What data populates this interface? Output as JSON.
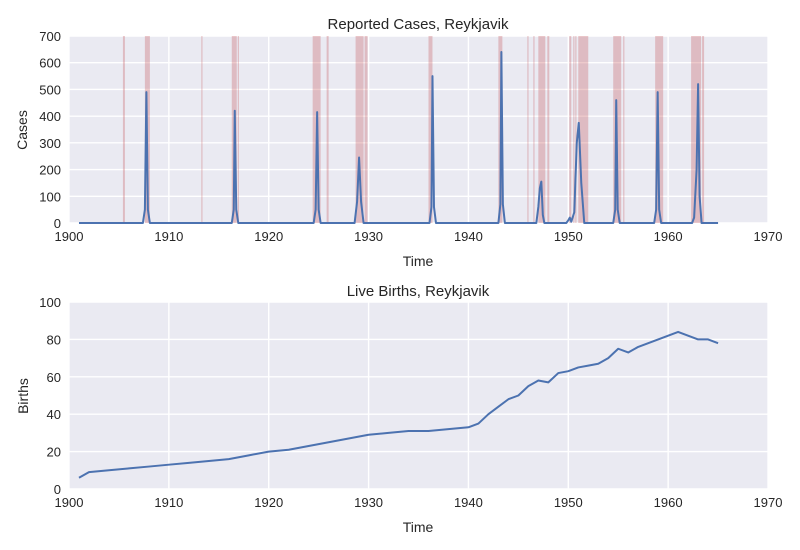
{
  "chart_data": [
    {
      "type": "line",
      "title": "Reported Cases, Reykjavik",
      "xlabel": "Time",
      "ylabel": "Cases",
      "xlim": [
        1900,
        1970
      ],
      "ylim": [
        0,
        700
      ],
      "xticks": [
        1900,
        1910,
        1920,
        1930,
        1940,
        1950,
        1960,
        1970
      ],
      "yticks": [
        0,
        100,
        200,
        300,
        400,
        500,
        600,
        700
      ],
      "grid": true,
      "series": [
        {
          "color": "#4c72b0",
          "x": [
            1901,
            1905.0,
            1907.4,
            1907.6,
            1907.75,
            1907.9,
            1908.1,
            1916.3,
            1916.5,
            1916.6,
            1916.75,
            1916.95,
            1924.5,
            1924.7,
            1924.85,
            1925.0,
            1925.2,
            1928.6,
            1928.85,
            1929.05,
            1929.25,
            1929.5,
            1936.1,
            1936.3,
            1936.4,
            1936.55,
            1936.75,
            1943.0,
            1943.2,
            1943.3,
            1943.45,
            1943.65,
            1946.8,
            1947.0,
            1947.15,
            1947.3,
            1947.45,
            1947.6,
            1949.8,
            1950.0,
            1950.15,
            1950.3,
            1950.6,
            1950.85,
            1951.05,
            1951.3,
            1951.6,
            1954.5,
            1954.7,
            1954.8,
            1954.95,
            1955.15,
            1958.6,
            1958.8,
            1958.95,
            1959.1,
            1959.3,
            1962.4,
            1962.6,
            1962.85,
            1963.0,
            1963.15,
            1963.35,
            1965
          ],
          "y": [
            0,
            0,
            0,
            50,
            490,
            50,
            0,
            0,
            50,
            420,
            50,
            0,
            0,
            50,
            415,
            50,
            0,
            0,
            80,
            245,
            80,
            0,
            0,
            60,
            550,
            60,
            0,
            0,
            70,
            640,
            70,
            0,
            0,
            60,
            130,
            155,
            30,
            0,
            0,
            10,
            20,
            5,
            40,
            300,
            375,
            150,
            0,
            0,
            50,
            460,
            50,
            0,
            0,
            50,
            490,
            50,
            0,
            0,
            20,
            200,
            520,
            100,
            0,
            0
          ]
        }
      ],
      "shaded_x_ranges": [
        [
          1905.4,
          1905.6
        ],
        [
          1907.6,
          1908.1
        ],
        [
          1913.25,
          1913.35
        ],
        [
          1916.3,
          1916.8
        ],
        [
          1916.9,
          1917.0
        ],
        [
          1924.4,
          1925.2
        ],
        [
          1925.8,
          1926.0
        ],
        [
          1928.7,
          1929.5
        ],
        [
          1929.6,
          1929.9
        ],
        [
          1936.0,
          1936.4
        ],
        [
          1943.0,
          1943.4
        ],
        [
          1945.9,
          1946.0
        ],
        [
          1946.5,
          1946.6
        ],
        [
          1947.0,
          1947.7
        ],
        [
          1947.9,
          1948.1
        ],
        [
          1950.1,
          1950.3
        ],
        [
          1950.5,
          1950.6
        ],
        [
          1950.7,
          1950.8
        ],
        [
          1951.0,
          1952.0
        ],
        [
          1954.5,
          1955.3
        ],
        [
          1955.5,
          1955.6
        ],
        [
          1958.7,
          1959.5
        ],
        [
          1962.3,
          1963.3
        ],
        [
          1963.4,
          1963.6
        ]
      ]
    },
    {
      "type": "line",
      "title": "Live Births, Reykjavik",
      "xlabel": "Time",
      "ylabel": "Births",
      "xlim": [
        1900,
        1970
      ],
      "ylim": [
        0,
        100
      ],
      "xticks": [
        1900,
        1910,
        1920,
        1930,
        1940,
        1950,
        1960,
        1970
      ],
      "yticks": [
        0,
        20,
        40,
        60,
        80,
        100
      ],
      "grid": true,
      "series": [
        {
          "color": "#4c72b0",
          "x": [
            1901,
            1902,
            1904,
            1906,
            1908,
            1910,
            1912,
            1914,
            1916,
            1918,
            1920,
            1922,
            1924,
            1926,
            1928,
            1930,
            1932,
            1934,
            1936,
            1938,
            1940,
            1941,
            1942,
            1943,
            1944,
            1945,
            1946,
            1947,
            1948,
            1949,
            1950,
            1951,
            1952,
            1953,
            1954,
            1955,
            1956,
            1957,
            1958,
            1959,
            1960,
            1961,
            1962,
            1963,
            1964,
            1965
          ],
          "y": [
            6,
            9,
            10,
            11,
            12,
            13,
            14,
            15,
            16,
            18,
            20,
            21,
            23,
            25,
            27,
            29,
            30,
            31,
            31,
            32,
            33,
            35,
            40,
            44,
            48,
            50,
            55,
            58,
            57,
            62,
            63,
            65,
            66,
            67,
            70,
            75,
            73,
            76,
            78,
            80,
            82,
            84,
            82,
            80,
            80,
            78
          ]
        }
      ]
    }
  ]
}
